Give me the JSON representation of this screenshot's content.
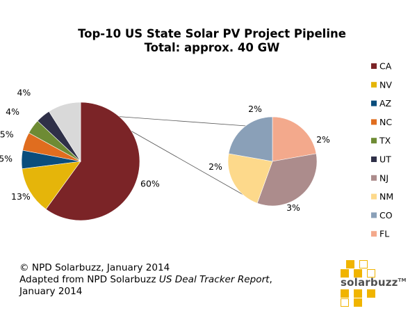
{
  "chart_data": {
    "type": "pie",
    "title": "Top-10 US State Solar PV Project Pipeline",
    "subtitle": "Total: approx. 40 GW",
    "unit": "%",
    "slices": [
      {
        "label": "CA",
        "value": 60,
        "value_label": "60%",
        "color": "#7b2427"
      },
      {
        "label": "NV",
        "value": 13,
        "value_label": "13%",
        "color": "#e5b50a"
      },
      {
        "label": "AZ",
        "value": 5,
        "value_label": "5%",
        "color": "#0a4d7c"
      },
      {
        "label": "NC",
        "value": 5,
        "value_label": "5%",
        "color": "#e06d1f"
      },
      {
        "label": "TX",
        "value": 4,
        "value_label": "4%",
        "color": "#6e8b34"
      },
      {
        "label": "UT",
        "value": 4,
        "value_label": "4%",
        "color": "#2f3048"
      },
      {
        "label": "NJ",
        "value": 3,
        "value_label": "3%",
        "color": "#ac8c8c"
      },
      {
        "label": "NM",
        "value": 2,
        "value_label": "2%",
        "color": "#fdd98b"
      },
      {
        "label": "CO",
        "value": 2,
        "value_label": "2%",
        "color": "#8aa0b8"
      },
      {
        "label": "FL",
        "value": 2,
        "value_label": "2%",
        "color": "#f3a98c"
      }
    ],
    "main_pie_labels": [
      "CA",
      "NV",
      "AZ",
      "NC",
      "TX",
      "UT"
    ],
    "detail_pie_labels": [
      "FL",
      "NJ",
      "NM",
      "CO"
    ],
    "other_slice_color": "#d9d9d9",
    "legend_position": "right"
  },
  "credits": {
    "line1": "© NPD Solarbuzz, January 2014",
    "line2_prefix": "Adapted from NPD Solarbuzz ",
    "line2_italic": "US Deal Tracker Report",
    "line2_suffix": ",",
    "line3": "January 2014"
  },
  "logo": {
    "text": "solarbuzz",
    "tm": "TM",
    "color": "#f0b400"
  }
}
